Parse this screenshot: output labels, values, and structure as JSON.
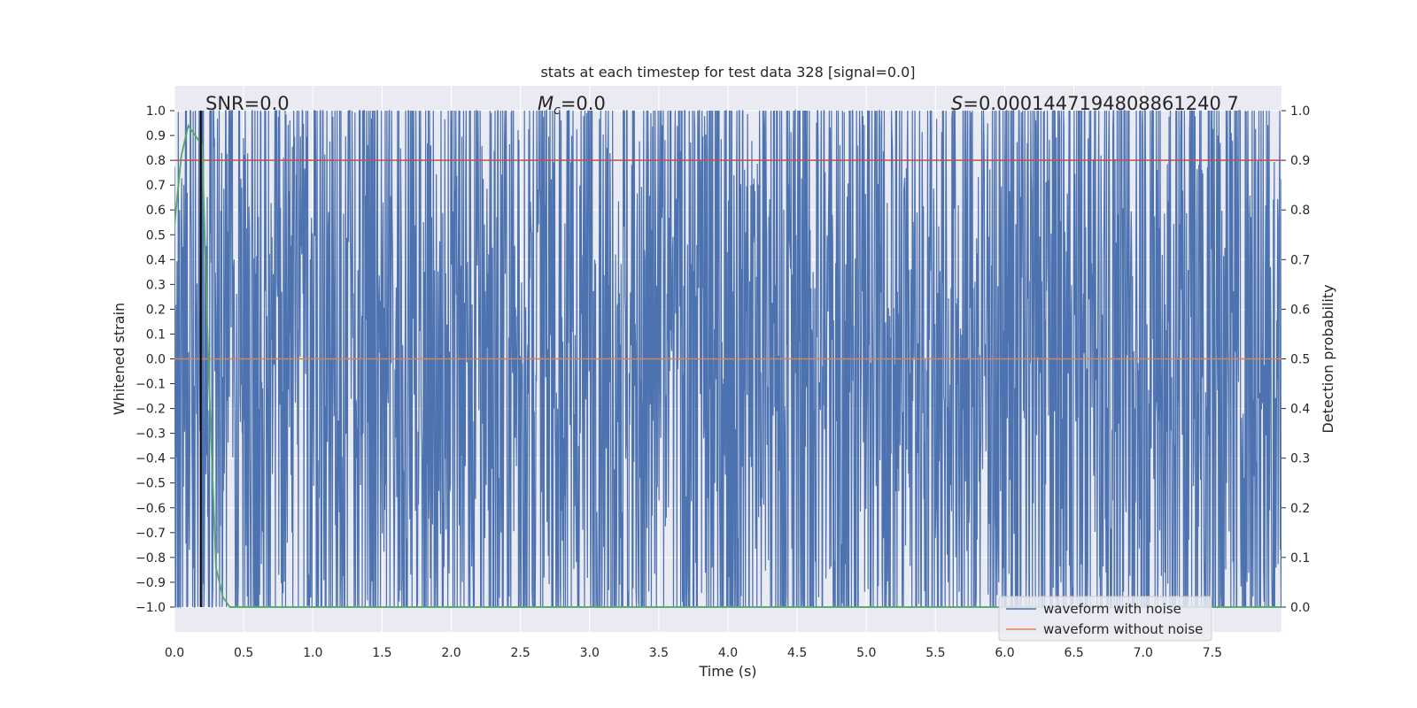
{
  "chart_data": {
    "type": "line",
    "title": "stats at each timestep for test data 328 [signal=0.0]",
    "xlabel": "Time (s)",
    "ylabel_left": "Whitened strain",
    "ylabel_right": "Detection probability",
    "xlim": [
      0.0,
      8.0
    ],
    "ylim_left": [
      -1.1,
      1.1
    ],
    "ylim_right": [
      -0.05,
      1.05
    ],
    "x_ticks": [
      "0.0",
      "0.5",
      "1.0",
      "1.5",
      "2.0",
      "2.5",
      "3.0",
      "3.5",
      "4.0",
      "4.5",
      "5.0",
      "5.5",
      "6.0",
      "6.5",
      "7.0",
      "7.5"
    ],
    "left_ticks": [
      "1.0",
      "0.9",
      "0.8",
      "0.7",
      "0.6",
      "0.5",
      "0.4",
      "0.3",
      "0.2",
      "0.1",
      "0.0",
      "−0.1",
      "−0.2",
      "−0.3",
      "−0.4",
      "−0.5",
      "−0.6",
      "−0.7",
      "−0.8",
      "−0.9",
      "−1.0"
    ],
    "right_ticks": [
      "1.0",
      "0.9",
      "0.8",
      "0.7",
      "0.6",
      "0.5",
      "0.4",
      "0.3",
      "0.2",
      "0.1",
      "0.0"
    ],
    "grid": true,
    "legend_position": "lower-right",
    "series": [
      {
        "name": "waveform with noise",
        "axis": "left",
        "color": "#4c72b0",
        "description_of_values": "dense noise clipped between -1.0 and 1.0 over 0-8 s",
        "range": [
          -1.0,
          1.0
        ]
      },
      {
        "name": "waveform without noise",
        "axis": "left",
        "color": "#dd8452",
        "x": [
          0.0,
          8.0
        ],
        "y": [
          0.0,
          0.0
        ]
      },
      {
        "axis": "right",
        "color": "#55a868",
        "x": [
          0.0,
          0.05,
          0.1,
          0.15,
          0.2,
          0.25,
          0.3,
          0.35,
          0.4,
          1.0,
          2.0,
          3.0,
          4.0,
          5.0,
          6.0,
          7.0,
          8.0
        ],
        "y": [
          0.77,
          0.91,
          0.97,
          0.95,
          0.93,
          0.45,
          0.08,
          0.02,
          0.0,
          0.0,
          0.0,
          0.0,
          0.0,
          0.0,
          0.0,
          0.0,
          0.0
        ]
      },
      {
        "axis": "right",
        "color": "#c44e52",
        "x": [
          0.0,
          8.0
        ],
        "y": [
          0.9,
          0.9
        ]
      }
    ],
    "vertical_marker": {
      "x": 0.19,
      "color": "#000000"
    },
    "annotations": {
      "snr": "SNR=0.0",
      "mc_symbol": "M",
      "mc_sub": "c",
      "mc_rest": "=0.0",
      "s_symbol": "S",
      "s_rest": "=0.0001447194808861240 7"
    }
  },
  "legend": {
    "items": [
      {
        "label": "waveform with noise",
        "color": "#4c72b0"
      },
      {
        "label": "waveform without noise",
        "color": "#dd8452"
      }
    ]
  }
}
